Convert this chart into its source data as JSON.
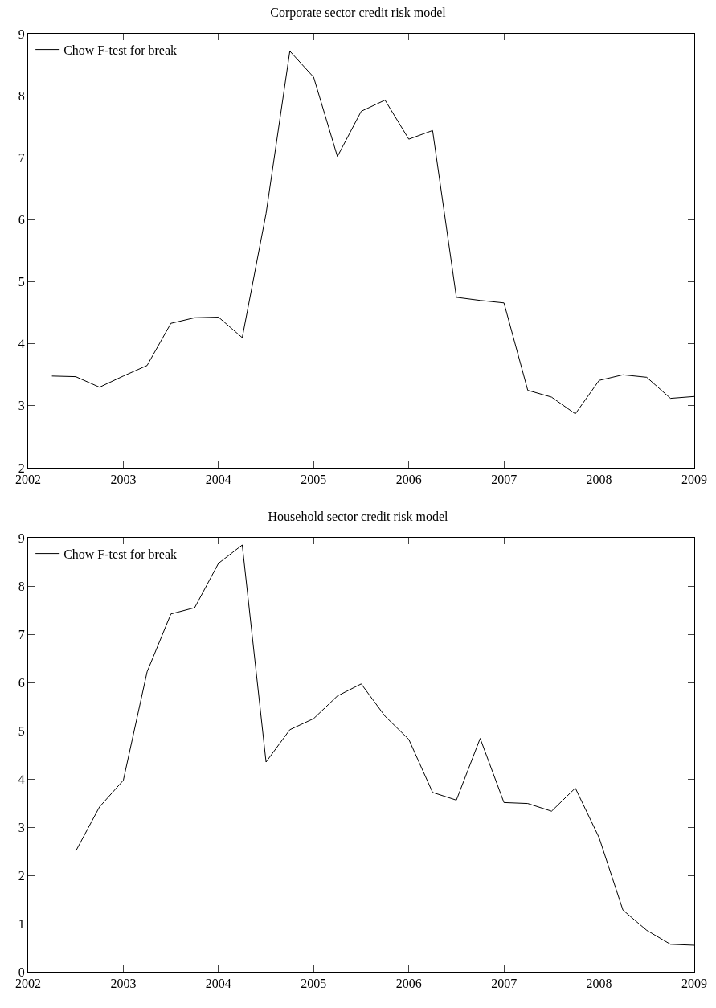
{
  "chart_data": [
    {
      "type": "line",
      "title": "Corporate sector credit risk model",
      "x": [
        2002.25,
        2002.5,
        2002.75,
        2003,
        2003.25,
        2003.5,
        2003.75,
        2004,
        2004.25,
        2004.5,
        2004.75,
        2005,
        2005.25,
        2005.5,
        2005.75,
        2006,
        2006.25,
        2006.5,
        2006.75,
        2007,
        2007.25,
        2007.5,
        2007.75,
        2008,
        2008.25,
        2008.5,
        2008.75,
        2009
      ],
      "series": [
        {
          "name": "Chow F-test for break",
          "color": "#000000",
          "values": [
            3.48,
            3.47,
            3.3,
            3.48,
            3.65,
            4.33,
            4.42,
            4.43,
            4.1,
            6.1,
            8.72,
            8.3,
            7.02,
            7.75,
            7.93,
            7.3,
            7.44,
            4.75,
            4.7,
            4.66,
            3.25,
            3.14,
            2.87,
            3.41,
            3.5,
            3.46,
            3.12,
            3.15
          ]
        }
      ],
      "xlim": [
        2002,
        2009
      ],
      "xticks": [
        2002,
        2003,
        2004,
        2005,
        2006,
        2007,
        2008,
        2009
      ],
      "ylim": [
        2,
        9
      ],
      "yticks": [
        2,
        3,
        4,
        5,
        6,
        7,
        8,
        9
      ],
      "grid": false,
      "legend": "top left"
    },
    {
      "type": "line",
      "title": "Household sector credit risk model",
      "x": [
        2002.5,
        2002.75,
        2003,
        2003.25,
        2003.5,
        2003.75,
        2004,
        2004.25,
        2004.5,
        2004.75,
        2005,
        2005.25,
        2005.5,
        2005.75,
        2006,
        2006.25,
        2006.5,
        2006.75,
        2007,
        2007.25,
        2007.5,
        2007.75,
        2008,
        2008.25,
        2008.5,
        2008.75,
        2009
      ],
      "series": [
        {
          "name": "Chow F-test for break",
          "color": "#000000",
          "values": [
            2.5,
            3.42,
            3.97,
            6.22,
            7.42,
            7.55,
            8.47,
            8.85,
            4.35,
            5.02,
            5.25,
            5.72,
            5.97,
            5.3,
            4.82,
            3.72,
            3.56,
            4.84,
            3.51,
            3.49,
            3.33,
            3.81,
            2.78,
            1.28,
            0.86,
            0.57,
            0.55
          ]
        }
      ],
      "xlim": [
        2002,
        2009
      ],
      "xticks": [
        2002,
        2003,
        2004,
        2005,
        2006,
        2007,
        2008,
        2009
      ],
      "ylim": [
        0,
        9
      ],
      "yticks": [
        0,
        1,
        2,
        3,
        4,
        5,
        6,
        7,
        8,
        9
      ],
      "grid": false,
      "legend": "top left"
    }
  ]
}
